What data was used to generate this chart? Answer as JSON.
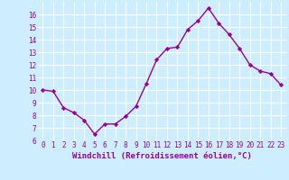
{
  "x": [
    0,
    1,
    2,
    3,
    4,
    5,
    6,
    7,
    8,
    9,
    10,
    11,
    12,
    13,
    14,
    15,
    16,
    17,
    18,
    19,
    20,
    21,
    22,
    23
  ],
  "y": [
    10.0,
    9.9,
    8.6,
    8.2,
    7.6,
    6.5,
    7.3,
    7.3,
    7.9,
    8.7,
    10.5,
    12.4,
    13.3,
    13.4,
    14.8,
    15.5,
    16.5,
    15.3,
    14.4,
    13.3,
    12.0,
    11.5,
    11.3,
    10.4
  ],
  "line_color": "#990099",
  "marker": "D",
  "marker_size": 2.2,
  "linewidth": 1.0,
  "xlabel": "Windchill (Refroidissement éolien,°C)",
  "xlim": [
    -0.5,
    23.5
  ],
  "ylim": [
    6,
    17
  ],
  "yticks": [
    6,
    7,
    8,
    9,
    10,
    11,
    12,
    13,
    14,
    15,
    16
  ],
  "xticks": [
    0,
    1,
    2,
    3,
    4,
    5,
    6,
    7,
    8,
    9,
    10,
    11,
    12,
    13,
    14,
    15,
    16,
    17,
    18,
    19,
    20,
    21,
    22,
    23
  ],
  "background_color": "#cceeff",
  "grid_color": "#ffffff",
  "tick_label_fontsize": 5.5,
  "xlabel_fontsize": 6.5,
  "label_color": "#990099"
}
